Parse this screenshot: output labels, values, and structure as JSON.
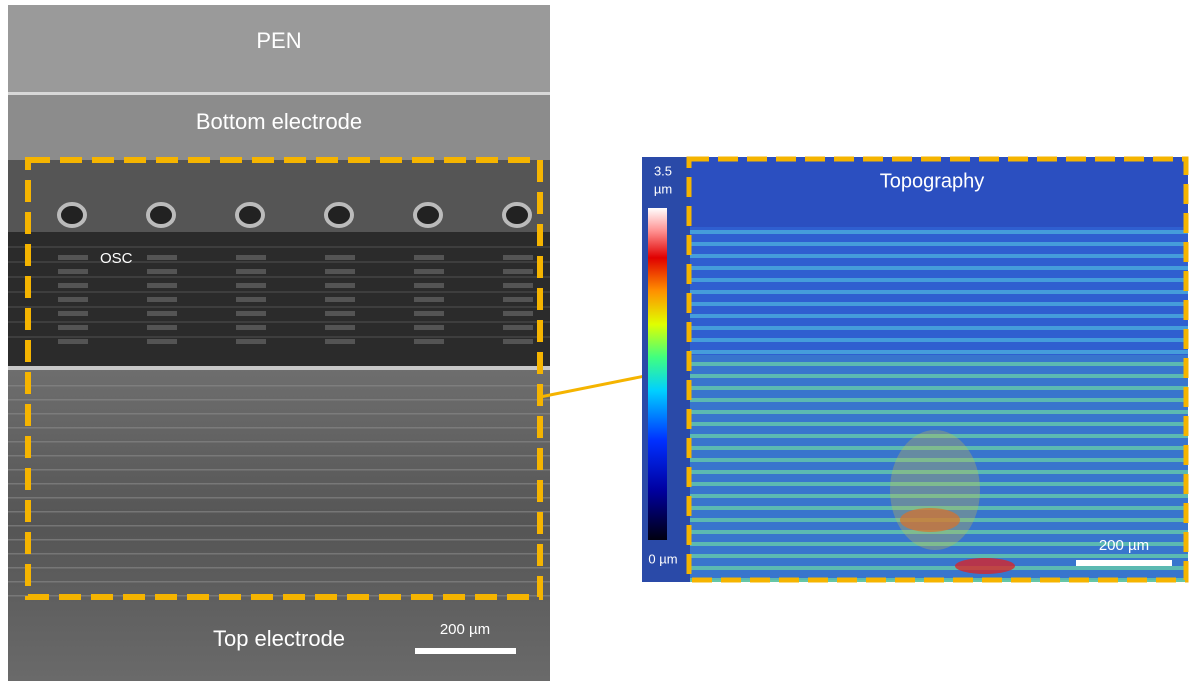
{
  "left_panel": {
    "top_label": "PEN",
    "bottom_electrode_label": "Bottom electrode",
    "osc_label": "OSC",
    "top_electrode_label": "Top electrode",
    "scale_bar_label": "200 µm"
  },
  "right_panel": {
    "title": "Topography",
    "colorbar_max": "3.5",
    "colorbar_max_unit": "µm",
    "colorbar_min": "0 µm",
    "scale_bar_label": "200 µm"
  }
}
